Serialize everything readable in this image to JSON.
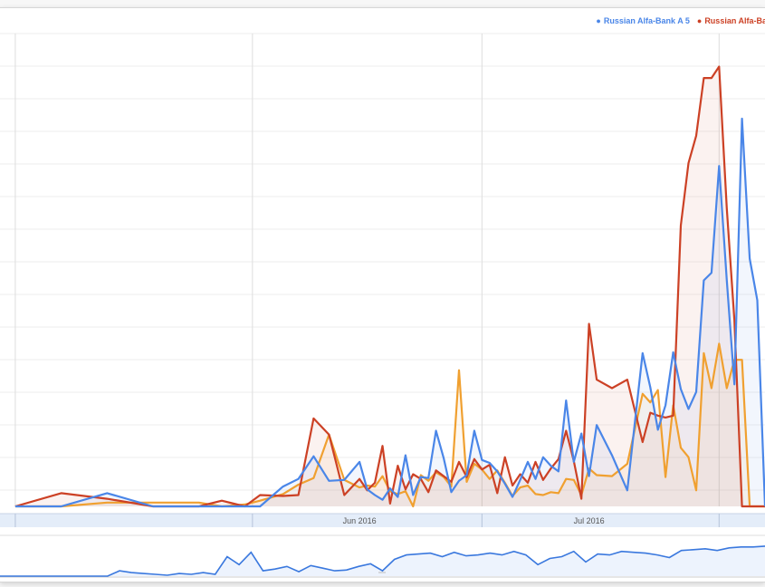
{
  "chart_data": {
    "type": "area",
    "x_tick_labels": [
      "Jun 2016",
      "Jul 2016"
    ],
    "grid": true,
    "legend_position": "top-right",
    "x": [
      "2016-05-01",
      "2016-05-07",
      "2016-05-13",
      "2016-05-19",
      "2016-05-25",
      "2016-05-28",
      "2016-05-31",
      "2016-06-02",
      "2016-06-05",
      "2016-06-07",
      "2016-06-09",
      "2016-06-11",
      "2016-06-13",
      "2016-06-15",
      "2016-06-16",
      "2016-06-17",
      "2016-06-18",
      "2016-06-19",
      "2016-06-20",
      "2016-06-21",
      "2016-06-22",
      "2016-06-23",
      "2016-06-24",
      "2016-06-25",
      "2016-06-26",
      "2016-06-27",
      "2016-06-28",
      "2016-06-29",
      "2016-06-30",
      "2016-07-01",
      "2016-07-02",
      "2016-07-03",
      "2016-07-04",
      "2016-07-05",
      "2016-07-06",
      "2016-07-07",
      "2016-07-08",
      "2016-07-09",
      "2016-07-10",
      "2016-07-11",
      "2016-07-12",
      "2016-07-13",
      "2016-07-14",
      "2016-07-15",
      "2016-07-16",
      "2016-07-18",
      "2016-07-20",
      "2016-07-22",
      "2016-07-23",
      "2016-07-24",
      "2016-07-25",
      "2016-07-26",
      "2016-07-27",
      "2016-07-28",
      "2016-07-29",
      "2016-07-30",
      "2016-07-31",
      "2016-08-01",
      "2016-08-02",
      "2016-08-03",
      "2016-08-04",
      "2016-08-05",
      "2016-08-06",
      "2016-08-07"
    ],
    "y_range": [
      0,
      500
    ],
    "series": [
      {
        "name": "Russian Alfa-Bank A 5",
        "color": "#4a86e8",
        "values": [
          0,
          0,
          14,
          0,
          0,
          0,
          0,
          0,
          21,
          29,
          53,
          27,
          28,
          47,
          18,
          12,
          7,
          19,
          10,
          54,
          12,
          31,
          30,
          80,
          51,
          15,
          27,
          33,
          80,
          49,
          46,
          37,
          24,
          10,
          28,
          47,
          29,
          52,
          43,
          37,
          112,
          47,
          77,
          32,
          86,
          54,
          17,
          162,
          126,
          81,
          107,
          163,
          124,
          103,
          121,
          239,
          247,
          360,
          239,
          129,
          410,
          262,
          218,
          0
        ]
      },
      {
        "name": "Russian Alfa-Ba",
        "color": "#cc4125",
        "values": [
          0,
          14,
          8,
          0,
          0,
          6,
          0,
          12,
          11,
          12,
          93,
          76,
          12,
          29,
          17,
          25,
          64,
          3,
          43,
          18,
          34,
          29,
          15,
          38,
          32,
          26,
          47,
          31,
          50,
          39,
          44,
          14,
          52,
          22,
          34,
          25,
          47,
          28,
          40,
          50,
          80,
          48,
          8,
          193,
          134,
          125,
          134,
          68,
          99,
          96,
          94,
          96,
          297,
          363,
          392,
          453,
          453,
          465,
          315,
          197,
          0,
          0,
          0,
          0
        ]
      },
      {
        "name": "",
        "color": "#f0a030",
        "values": [
          0,
          0,
          4,
          4,
          4,
          0,
          2,
          6,
          13,
          23,
          30,
          76,
          28,
          20,
          22,
          21,
          32,
          16,
          13,
          16,
          0,
          33,
          27,
          36,
          31,
          21,
          144,
          26,
          45,
          39,
          29,
          38,
          25,
          11,
          20,
          22,
          13,
          12,
          15,
          14,
          29,
          28,
          12,
          40,
          33,
          32,
          45,
          119,
          110,
          123,
          31,
          107,
          62,
          52,
          17,
          162,
          125,
          172,
          125,
          155,
          155,
          0,
          0,
          0
        ]
      }
    ],
    "navigator": {
      "values": [
        0,
        0,
        0,
        0,
        0,
        0,
        0,
        0,
        0,
        0,
        6,
        4,
        3,
        2,
        1,
        3,
        2,
        4,
        2,
        22,
        13,
        27,
        6,
        8,
        11,
        5,
        12,
        9,
        6,
        7,
        11,
        14,
        6,
        19,
        24,
        25,
        26,
        22,
        27,
        23,
        24,
        26,
        24,
        28,
        24,
        13,
        20,
        22,
        28,
        16,
        25,
        24,
        28,
        27,
        26,
        24,
        21,
        29,
        30,
        31,
        29,
        32,
        33,
        33,
        34
      ]
    }
  }
}
